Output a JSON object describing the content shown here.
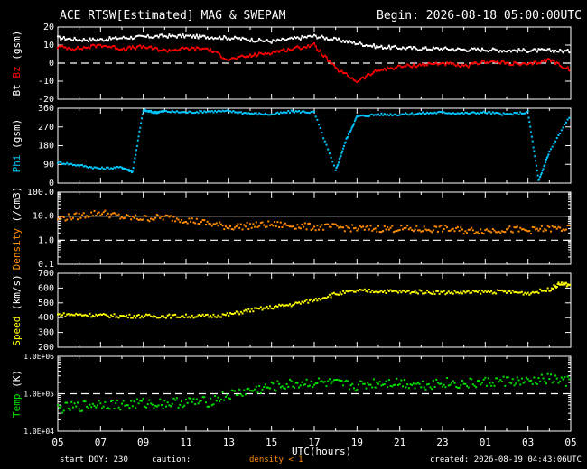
{
  "header": {
    "title": "ACE RTSW[Estimated] MAG & SWEPAM",
    "begin": "Begin: 2026-08-18 05:00:00UTC"
  },
  "footer": {
    "start": "start DOY: 230",
    "caution": "caution:",
    "density_note": "density < 1",
    "created": "created: 2026-08-19 04:43:06UTC"
  },
  "colors": {
    "bt": "#ffffff",
    "bz": "#ff0000",
    "phi": "#00c8ff",
    "density": "#ff8c00",
    "speed": "#ffff00",
    "temp": "#00e000"
  },
  "chart_data": [
    {
      "type": "line",
      "panel": "mag",
      "ylabel_parts": [
        "Bt",
        "Bz",
        "(gsm)"
      ],
      "ylabel_colors": [
        "#ffffff",
        "#ff0000",
        "#ffffff"
      ],
      "ylim": [
        -20,
        20
      ],
      "yticks": [
        20,
        10,
        0,
        -10,
        -20
      ],
      "ytick_labels": [
        "20",
        "10",
        "0",
        "-10",
        "-20"
      ],
      "ref_line": 0,
      "series": [
        {
          "name": "Bt",
          "color": "#ffffff",
          "x": [
            0,
            1,
            2,
            3,
            4,
            5,
            6,
            7,
            8,
            9,
            10,
            11,
            12,
            13,
            14,
            15,
            16,
            17,
            18,
            19,
            20,
            21,
            22,
            23,
            24
          ],
          "y": [
            14,
            13,
            13,
            14,
            14.5,
            15,
            15,
            14.5,
            14,
            13,
            12,
            13.5,
            15,
            13,
            11,
            9,
            8.5,
            8,
            8,
            7.5,
            7.5,
            7,
            7,
            7,
            6.5
          ]
        },
        {
          "name": "Bz",
          "color": "#ff0000",
          "x": [
            0,
            1,
            2,
            3,
            4,
            5,
            6,
            7,
            8,
            9,
            10,
            11,
            12,
            13,
            14,
            15,
            16,
            17,
            18,
            19,
            20,
            21,
            22,
            23,
            24
          ],
          "y": [
            9,
            8,
            10,
            8,
            9,
            7,
            8,
            8,
            2,
            4,
            6,
            8,
            10,
            -3,
            -10,
            -4,
            -2,
            -1,
            0,
            -2,
            1,
            0,
            -1,
            2,
            -4
          ]
        }
      ]
    },
    {
      "type": "scatter",
      "panel": "phi",
      "ylabel_parts": [
        "Phi",
        "(gsm)"
      ],
      "ylabel_colors": [
        "#00c8ff",
        "#ffffff"
      ],
      "ylim": [
        0,
        360
      ],
      "yticks": [
        360,
        270,
        180,
        90,
        0
      ],
      "ytick_labels": [
        "360",
        "270",
        "180",
        "90",
        "0"
      ],
      "series": [
        {
          "name": "Phi",
          "color": "#00c8ff",
          "x": [
            0,
            1,
            2,
            3,
            3.5,
            4,
            4.5,
            5,
            6,
            7,
            8,
            9,
            10,
            11,
            12,
            13,
            13.5,
            14,
            15,
            16,
            17,
            18,
            19,
            20,
            21,
            22,
            22.5,
            23,
            24
          ],
          "y": [
            100,
            85,
            70,
            75,
            55,
            350,
            340,
            345,
            340,
            345,
            345,
            335,
            330,
            345,
            340,
            60,
            210,
            320,
            330,
            330,
            335,
            340,
            335,
            340,
            330,
            340,
            10,
            150,
            330
          ]
        }
      ]
    },
    {
      "type": "scatter",
      "panel": "density",
      "ylabel_parts": [
        "Density",
        "(/cm3)"
      ],
      "ylabel_colors": [
        "#ff8c00",
        "#ffffff"
      ],
      "yscale": "log",
      "ylim": [
        0.1,
        100
      ],
      "yticks": [
        100,
        10,
        1,
        0.1
      ],
      "ytick_labels": [
        "100.0",
        "10.0",
        "1.0",
        "0.1"
      ],
      "ref_lines": [
        10,
        1
      ],
      "series": [
        {
          "name": "Density",
          "color": "#ff8c00",
          "x": [
            0,
            1,
            2,
            3,
            4,
            5,
            6,
            7,
            8,
            9,
            10,
            11,
            12,
            13,
            14,
            15,
            16,
            17,
            18,
            19,
            20,
            21,
            22,
            23,
            24
          ],
          "y": [
            8,
            10,
            14,
            9,
            8,
            9,
            7,
            5,
            3.5,
            4,
            4.5,
            4,
            3.5,
            3.5,
            3,
            3,
            3,
            2.8,
            3,
            2.5,
            2.5,
            2.8,
            2.5,
            3,
            3
          ]
        }
      ]
    },
    {
      "type": "scatter",
      "panel": "speed",
      "ylabel_parts": [
        "Speed",
        "(km/s)"
      ],
      "ylabel_colors": [
        "#ffff00",
        "#ffffff"
      ],
      "ylim": [
        200,
        700
      ],
      "yticks": [
        700,
        600,
        500,
        400,
        300,
        200
      ],
      "ytick_labels": [
        "700",
        "600",
        "500",
        "400",
        "300",
        "200"
      ],
      "series": [
        {
          "name": "Speed",
          "color": "#ffff00",
          "x": [
            0,
            1,
            2,
            3,
            4,
            5,
            6,
            7,
            8,
            9,
            10,
            11,
            12,
            13,
            14,
            15,
            16,
            17,
            18,
            19,
            20,
            21,
            22,
            23,
            23.5,
            24
          ],
          "y": [
            420,
            420,
            415,
            410,
            410,
            410,
            410,
            410,
            420,
            450,
            470,
            490,
            520,
            560,
            580,
            580,
            575,
            575,
            570,
            570,
            575,
            575,
            565,
            590,
            630,
            620
          ]
        }
      ]
    },
    {
      "type": "scatter",
      "panel": "temp",
      "ylabel_parts": [
        "Temp",
        "(K)"
      ],
      "ylabel_colors": [
        "#00e000",
        "#ffffff"
      ],
      "yscale": "log",
      "ylim": [
        10000,
        1000000
      ],
      "yticks": [
        1000000,
        100000,
        10000
      ],
      "ytick_labels": [
        "1.0E+06",
        "1.0E+05",
        "1.0E+04"
      ],
      "ref_lines": [
        100000
      ],
      "series": [
        {
          "name": "Temp",
          "color": "#00e000",
          "x": [
            0,
            1,
            2,
            3,
            4,
            5,
            6,
            7,
            8,
            9,
            10,
            11,
            12,
            13,
            14,
            15,
            16,
            17,
            18,
            19,
            20,
            21,
            22,
            23,
            24
          ],
          "y": [
            40000,
            45000,
            55000,
            50000,
            55000,
            55000,
            60000,
            60000,
            90000,
            120000,
            150000,
            180000,
            200000,
            180000,
            160000,
            200000,
            200000,
            170000,
            200000,
            180000,
            200000,
            220000,
            200000,
            250000,
            200000
          ]
        }
      ]
    }
  ],
  "xaxis": {
    "label": "UTC(hours)",
    "tick_labels": [
      "05",
      "07",
      "09",
      "11",
      "13",
      "15",
      "17",
      "19",
      "21",
      "23",
      "01",
      "03",
      "05"
    ],
    "xlim": [
      0,
      24
    ]
  }
}
